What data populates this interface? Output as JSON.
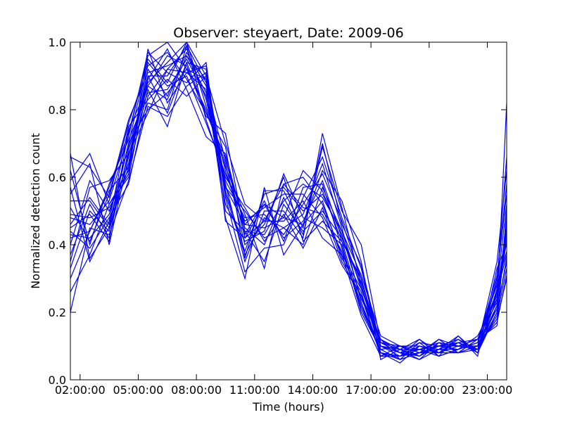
{
  "chart_data": {
    "type": "line",
    "title": "Observer: steyaert, Date: 2009-06",
    "xlabel": "Time (hours)",
    "ylabel": "Normalized detection count",
    "xlim": [
      1.5,
      24
    ],
    "ylim": [
      0,
      1
    ],
    "grid": false,
    "x_tick_values": [
      2,
      5,
      8,
      11,
      14,
      17,
      20,
      23
    ],
    "x_tick_labels": [
      "02:00:00",
      "05:00:00",
      "08:00:00",
      "11:00:00",
      "14:00:00",
      "17:00:00",
      "20:00:00",
      "23:00:00"
    ],
    "y_tick_values": [
      0.0,
      0.2,
      0.4,
      0.6,
      0.8,
      1.0
    ],
    "y_tick_labels": [
      "0.0",
      "0.2",
      "0.4",
      "0.6",
      "0.8",
      "1.0"
    ],
    "line_color": "#0000ff",
    "x": [
      1.5,
      2.5,
      3.5,
      4.5,
      5.5,
      6.5,
      7.5,
      8.5,
      9.5,
      10.5,
      11.5,
      12.5,
      13.5,
      14.5,
      15.5,
      16.5,
      17.5,
      18.5,
      19.5,
      20.5,
      21.5,
      22.5,
      23.5,
      24
    ],
    "series": [
      {
        "values": [
          0.67,
          0.36,
          0.45,
          0.7,
          0.95,
          0.88,
          1.0,
          0.9,
          0.7,
          0.52,
          0.47,
          0.58,
          0.51,
          0.49,
          0.38,
          0.22,
          0.1,
          0.07,
          0.09,
          0.1,
          0.11,
          0.08,
          0.22,
          0.82
        ]
      },
      {
        "values": [
          0.59,
          0.67,
          0.52,
          0.62,
          0.86,
          0.75,
          0.94,
          0.79,
          0.66,
          0.42,
          0.52,
          0.48,
          0.62,
          0.56,
          0.41,
          0.3,
          0.08,
          0.05,
          0.1,
          0.08,
          0.12,
          0.09,
          0.29,
          0.66
        ]
      },
      {
        "values": [
          0.42,
          0.44,
          0.57,
          0.73,
          0.96,
          1.0,
          0.92,
          0.89,
          0.55,
          0.37,
          0.48,
          0.45,
          0.4,
          0.57,
          0.44,
          0.31,
          0.13,
          0.1,
          0.09,
          0.11,
          0.08,
          0.12,
          0.16,
          0.5
        ]
      },
      {
        "values": [
          0.33,
          0.5,
          0.44,
          0.67,
          0.82,
          0.8,
          0.99,
          0.88,
          0.48,
          0.3,
          0.57,
          0.37,
          0.46,
          0.62,
          0.53,
          0.35,
          0.06,
          0.09,
          0.12,
          0.07,
          0.09,
          0.13,
          0.24,
          0.43
        ]
      },
      {
        "values": [
          0.26,
          0.37,
          0.52,
          0.6,
          0.89,
          0.98,
          0.86,
          0.72,
          0.67,
          0.45,
          0.4,
          0.54,
          0.43,
          0.69,
          0.5,
          0.4,
          0.11,
          0.08,
          0.06,
          0.09,
          0.13,
          0.07,
          0.33,
          0.4
        ]
      },
      {
        "values": [
          0.46,
          0.54,
          0.46,
          0.7,
          0.8,
          0.85,
          0.92,
          0.8,
          0.63,
          0.49,
          0.33,
          0.58,
          0.6,
          0.52,
          0.37,
          0.27,
          0.12,
          0.06,
          0.08,
          0.09,
          0.11,
          0.09,
          0.2,
          0.36
        ]
      },
      {
        "values": [
          0.51,
          0.41,
          0.55,
          0.77,
          0.91,
          0.93,
          0.96,
          0.85,
          0.52,
          0.41,
          0.44,
          0.61,
          0.48,
          0.45,
          0.4,
          0.2,
          0.09,
          0.1,
          0.07,
          0.11,
          0.1,
          0.1,
          0.18,
          0.3
        ]
      },
      {
        "values": [
          0.4,
          0.59,
          0.5,
          0.64,
          0.94,
          0.87,
          0.9,
          0.76,
          0.61,
          0.47,
          0.51,
          0.55,
          0.55,
          0.48,
          0.34,
          0.25,
          0.07,
          0.07,
          0.09,
          0.08,
          0.12,
          0.08,
          0.26,
          0.45
        ]
      },
      {
        "values": [
          0.44,
          0.39,
          0.48,
          0.58,
          0.84,
          0.92,
          0.98,
          0.83,
          0.58,
          0.35,
          0.5,
          0.5,
          0.42,
          0.73,
          0.51,
          0.28,
          0.1,
          0.08,
          0.11,
          0.07,
          0.09,
          0.11,
          0.31,
          0.55
        ]
      },
      {
        "values": [
          0.55,
          0.64,
          0.4,
          0.66,
          0.9,
          0.79,
          0.94,
          0.92,
          0.57,
          0.5,
          0.42,
          0.45,
          0.49,
          0.64,
          0.45,
          0.23,
          0.08,
          0.06,
          0.08,
          0.12,
          0.08,
          0.1,
          0.22,
          0.48
        ]
      },
      {
        "values": [
          0.48,
          0.46,
          0.53,
          0.72,
          0.97,
          0.91,
          0.88,
          0.94,
          0.5,
          0.44,
          0.35,
          0.52,
          0.44,
          0.5,
          0.42,
          0.29,
          0.11,
          0.09,
          0.07,
          0.1,
          0.11,
          0.12,
          0.28,
          0.38
        ]
      },
      {
        "values": [
          0.37,
          0.52,
          0.42,
          0.68,
          0.87,
          0.96,
          0.93,
          0.78,
          0.73,
          0.43,
          0.53,
          0.41,
          0.57,
          0.58,
          0.39,
          0.21,
          0.09,
          0.1,
          0.1,
          0.08,
          0.1,
          0.09,
          0.19,
          0.33
        ]
      },
      {
        "values": [
          0.3,
          0.44,
          0.56,
          0.63,
          0.92,
          0.84,
          0.97,
          0.87,
          0.65,
          0.46,
          0.45,
          0.48,
          0.46,
          0.53,
          0.36,
          0.26,
          0.07,
          0.07,
          0.08,
          0.09,
          0.09,
          0.11,
          0.25,
          0.42
        ]
      },
      {
        "values": [
          0.57,
          0.35,
          0.47,
          0.75,
          0.83,
          0.89,
          0.84,
          0.9,
          0.56,
          0.38,
          0.55,
          0.57,
          0.5,
          0.55,
          0.43,
          0.24,
          0.12,
          0.08,
          0.09,
          0.1,
          0.12,
          0.08,
          0.27,
          0.52
        ]
      },
      {
        "values": [
          0.49,
          0.48,
          0.51,
          0.61,
          0.98,
          0.82,
          0.91,
          0.86,
          0.59,
          0.48,
          0.49,
          0.43,
          0.52,
          0.61,
          0.47,
          0.3,
          0.1,
          0.09,
          0.06,
          0.11,
          0.1,
          0.1,
          0.21,
          0.35
        ]
      },
      {
        "values": [
          0.43,
          0.42,
          0.49,
          0.69,
          0.88,
          0.94,
          1.0,
          0.81,
          0.64,
          0.4,
          0.46,
          0.6,
          0.41,
          0.47,
          0.41,
          0.22,
          0.08,
          0.07,
          0.1,
          0.09,
          0.08,
          0.12,
          0.23,
          0.46
        ]
      },
      {
        "values": [
          0.62,
          0.4,
          0.58,
          0.71,
          0.85,
          0.86,
          0.95,
          0.84,
          0.62,
          0.44,
          0.43,
          0.53,
          0.58,
          0.54,
          0.44,
          0.27,
          0.11,
          0.1,
          0.08,
          0.08,
          0.11,
          0.09,
          0.3,
          0.58
        ]
      },
      {
        "values": [
          0.2,
          0.45,
          0.43,
          0.59,
          0.81,
          0.78,
          0.87,
          0.91,
          0.54,
          0.32,
          0.39,
          0.4,
          0.54,
          0.66,
          0.48,
          0.33,
          0.09,
          0.06,
          0.11,
          0.1,
          0.09,
          0.11,
          0.17,
          0.31
        ]
      },
      {
        "values": [
          0.66,
          0.63,
          0.54,
          0.76,
          0.93,
          0.97,
          0.89,
          0.79,
          0.69,
          0.36,
          0.56,
          0.56,
          0.45,
          0.7,
          0.46,
          0.34,
          0.1,
          0.08,
          0.07,
          0.12,
          0.1,
          0.1,
          0.35,
          0.62
        ]
      },
      {
        "values": [
          0.53,
          0.53,
          0.45,
          0.63,
          0.9,
          0.9,
          0.99,
          0.77,
          0.6,
          0.51,
          0.41,
          0.49,
          0.39,
          0.51,
          0.35,
          0.25,
          0.12,
          0.09,
          0.09,
          0.07,
          0.13,
          0.08,
          0.2,
          0.44
        ]
      },
      {
        "values": [
          0.35,
          0.57,
          0.59,
          0.67,
          0.79,
          0.92,
          0.91,
          0.93,
          0.47,
          0.42,
          0.47,
          0.47,
          0.53,
          0.42,
          0.37,
          0.19,
          0.07,
          0.1,
          0.08,
          0.1,
          0.1,
          0.12,
          0.26,
          0.37
        ]
      },
      {
        "values": [
          0.45,
          0.49,
          0.41,
          0.74,
          0.87,
          0.83,
          0.96,
          0.89,
          0.57,
          0.46,
          0.52,
          0.42,
          0.47,
          0.59,
          0.42,
          0.28,
          0.08,
          0.07,
          0.12,
          0.08,
          0.08,
          0.09,
          0.24,
          0.41
        ]
      }
    ]
  }
}
